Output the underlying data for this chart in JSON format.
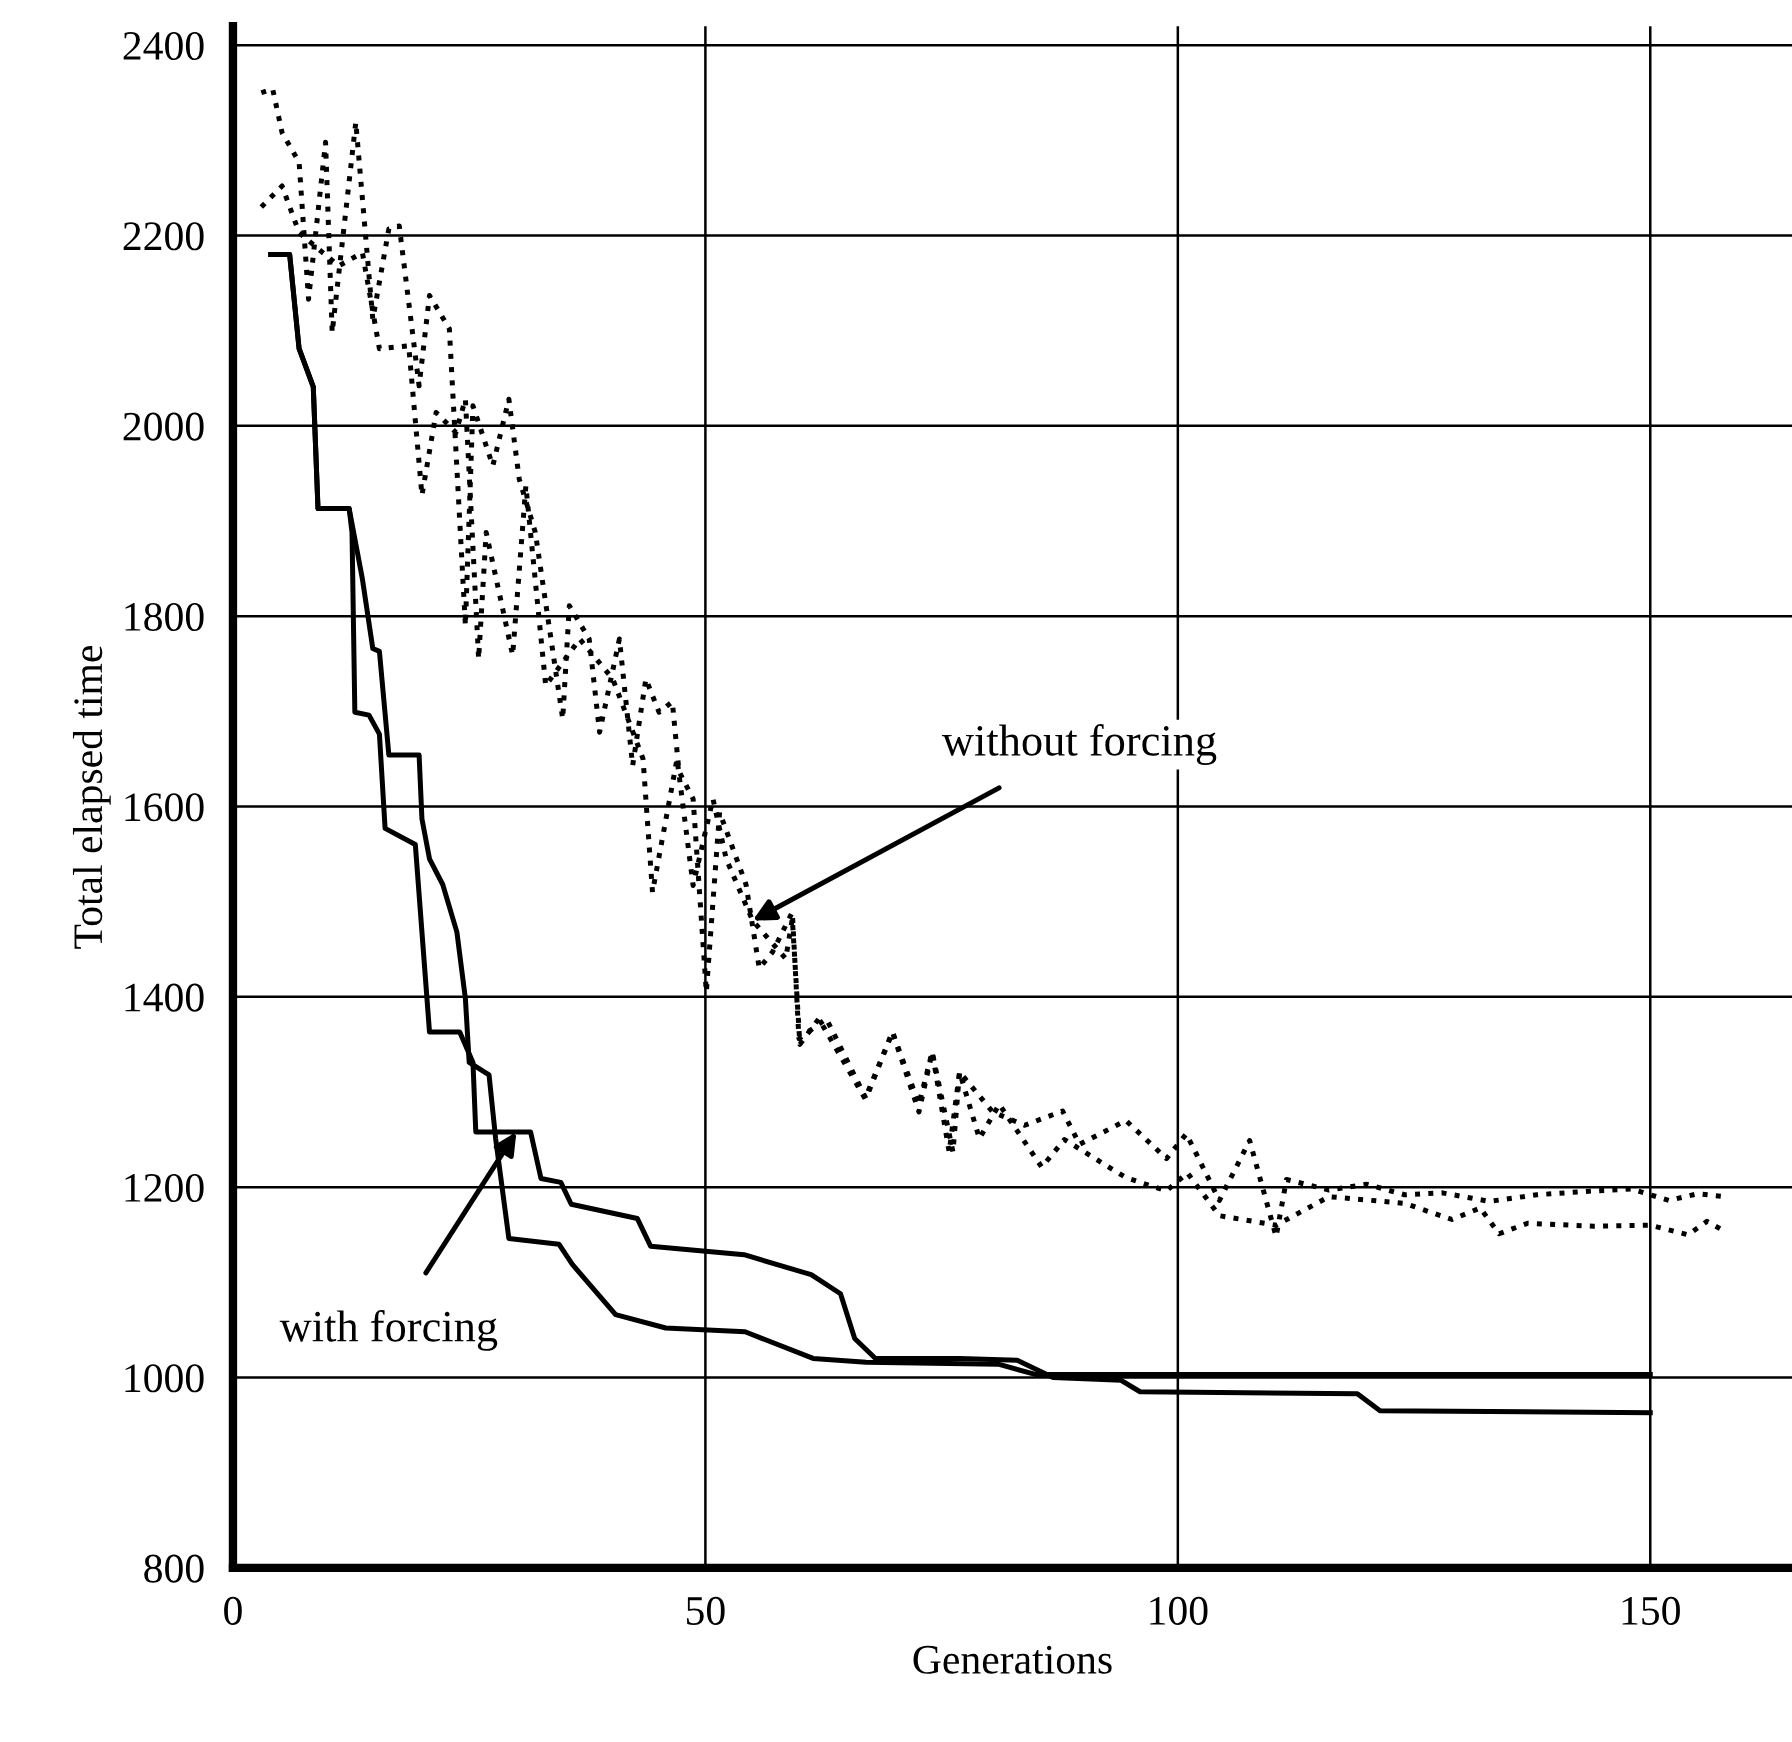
{
  "chart_data": {
    "type": "line",
    "xlabel": "Generations",
    "ylabel": "Total elapsed time",
    "xlim": [
      0,
      165
    ],
    "ylim": [
      800,
      2420
    ],
    "xticks": [
      0,
      50,
      100,
      150
    ],
    "yticks": [
      800,
      1000,
      1200,
      1400,
      1600,
      1800,
      2000,
      2200,
      2400
    ],
    "grid": true,
    "marker": "none",
    "series": [
      {
        "color": "#000000",
        "line_style": "solid",
        "x": [
          4,
          6,
          7,
          8.5,
          9,
          12.3,
          12.6,
          12.9,
          14.4,
          15.5,
          16.1,
          19.3,
          20.8,
          24,
          25.4,
          25.7,
          31.5,
          32.6,
          34.7,
          35.8,
          42.8,
          44.2,
          54.1,
          61.2,
          64.3,
          65.8,
          68,
          76.9,
          83,
          86.8,
          94,
          96,
          119,
          121.4,
          150
        ],
        "values": [
          2180,
          2180,
          2081,
          2041,
          1913,
          1913,
          1888,
          1699,
          1696,
          1676,
          1577,
          1560,
          1363,
          1363,
          1331,
          1258,
          1258,
          1209,
          1205,
          1182,
          1167,
          1138,
          1129,
          1108,
          1088,
          1041,
          1020,
          1020,
          1018,
          1000,
          997,
          985,
          983,
          965,
          963
        ]
      },
      {
        "color": "#000000",
        "line_style": "solid",
        "x": [
          4,
          6,
          7,
          8.5,
          9,
          12.3,
          13.7,
          14.8,
          15.5,
          16.5,
          19.7,
          20,
          20.8,
          22.2,
          23.7,
          24.6,
          25,
          27.1,
          27.8,
          29.2,
          34.5,
          35.9,
          40.5,
          45.8,
          54.2,
          61.4,
          67,
          81,
          85,
          150
        ],
        "values": [
          2180,
          2180,
          2081,
          2041,
          1913,
          1913,
          1839,
          1766,
          1763,
          1654,
          1654,
          1587,
          1545,
          1518,
          1468,
          1398,
          1331,
          1318,
          1251,
          1146,
          1140,
          1119,
          1066,
          1052,
          1048,
          1020,
          1016,
          1014,
          1003,
          1003
        ]
      },
      {
        "color": "#000000",
        "line_style": "dotted",
        "x": [
          3,
          4.2,
          5.2,
          7,
          8,
          9.8,
          10.5,
          13,
          14.8,
          16.5,
          17.6,
          19.7,
          20.8,
          22.9,
          24.6,
          25.4,
          27.5,
          29.2,
          30.3,
          32,
          34.9,
          35.6,
          37.7,
          38.8,
          40.9,
          42.3,
          43.7,
          45.1,
          46.5,
          47.2,
          48.7,
          50.1,
          51.5,
          54.3,
          55.7,
          57.1,
          59.2,
          59.9,
          62.8,
          67,
          69.8,
          72.6,
          74,
          75.8,
          76.9,
          80.4,
          83.8,
          87.8,
          89.6,
          94.5,
          98.8,
          100.9,
          104.4,
          107.6,
          110.4,
          111.5,
          116,
          120,
          124,
          128,
          133,
          138,
          144,
          148,
          152,
          155,
          158
        ],
        "values": [
          2350,
          2354,
          2308,
          2277,
          2133,
          2298,
          2098,
          2319,
          2112,
          2207,
          2210,
          2042,
          2137,
          2102,
          1790,
          2021,
          1958,
          2028,
          1944,
          1888,
          1692,
          1811,
          1776,
          1678,
          1776,
          1643,
          1734,
          1699,
          1710,
          1637,
          1608,
          1405,
          1594,
          1518,
          1430,
          1447,
          1489,
          1356,
          1377,
          1293,
          1363,
          1279,
          1342,
          1237,
          1321,
          1279,
          1265,
          1280,
          1245,
          1270,
          1230,
          1256,
          1186,
          1249,
          1148,
          1208,
          1197,
          1203,
          1192,
          1194,
          1185,
          1192,
          1196,
          1198,
          1186,
          1193,
          1190
        ]
      },
      {
        "color": "#000000",
        "line_style": "dotted",
        "x": [
          3,
          5.2,
          7,
          9.5,
          11.2,
          13.7,
          15.5,
          18.6,
          20,
          21.5,
          23.6,
          24.6,
          26,
          26.8,
          29.6,
          31,
          33.1,
          36.7,
          40.2,
          43.4,
          44.4,
          47,
          48.7,
          50.8,
          52.2,
          55,
          58.5,
          59.2,
          60,
          62,
          66.9,
          69.8,
          72.6,
          74,
          76.2,
          76.9,
          79,
          81.1,
          85.6,
          88,
          94.5,
          98.8,
          101,
          104.4,
          110.4,
          116,
          124,
          129,
          132,
          134,
          137,
          144,
          150,
          154,
          156,
          158
        ],
        "values": [
          2230,
          2252,
          2203,
          2182,
          2168,
          2182,
          2081,
          2084,
          1927,
          2014,
          1993,
          2028,
          1755,
          1888,
          1759,
          1937,
          1727,
          1776,
          1734,
          1650,
          1510,
          1650,
          1517,
          1608,
          1545,
          1480,
          1440,
          1482,
          1350,
          1377,
          1293,
          1363,
          1287,
          1342,
          1237,
          1321,
          1251,
          1287,
          1221,
          1250,
          1210,
          1196,
          1215,
          1170,
          1160,
          1190,
          1183,
          1166,
          1178,
          1151,
          1162,
          1159,
          1160,
          1150,
          1164,
          1153
        ]
      }
    ],
    "annotations": [
      {
        "text": "without forcing",
        "x": 55,
        "y": 1480
      },
      {
        "text": "with forcing",
        "x": 30,
        "y": 1258
      }
    ]
  }
}
